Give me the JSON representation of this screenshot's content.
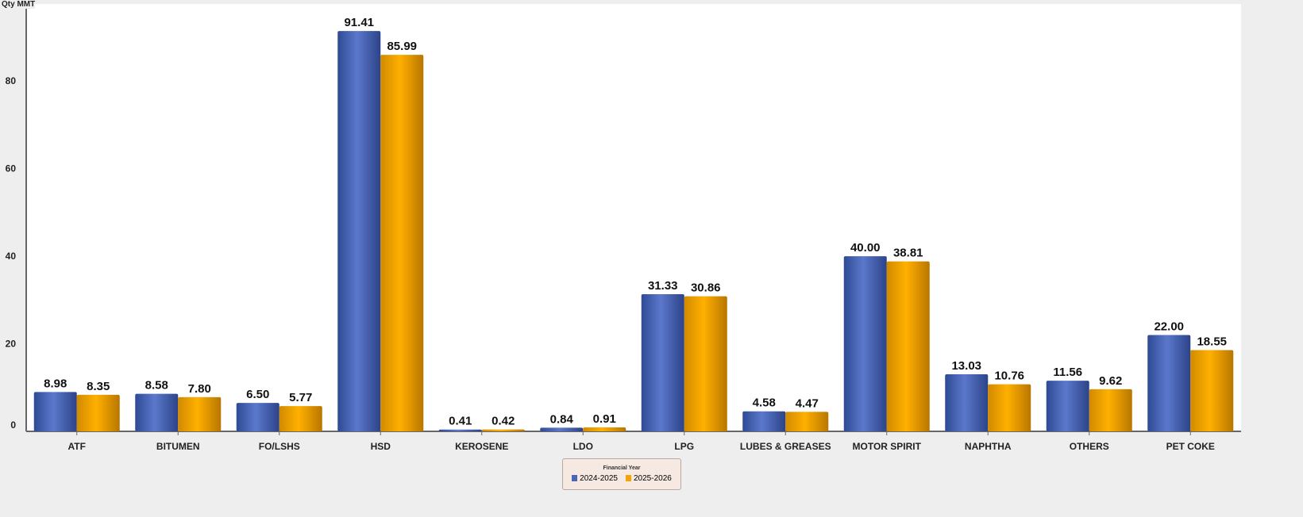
{
  "chart_data": {
    "type": "bar",
    "ylabel": "Qty MMT",
    "ylim": [
      0,
      97.6
    ],
    "yticks": [
      0,
      20,
      40,
      60,
      80
    ],
    "categories": [
      "ATF",
      "BITUMEN",
      "FO/LSHS",
      "HSD",
      "KEROSENE",
      "LDO",
      "LPG",
      "LUBES & GREASES",
      "MOTOR SPIRIT",
      "NAPHTHA",
      "OTHERS",
      "PET COKE"
    ],
    "legend_title": "Financial Year",
    "legend_placement": "bottom",
    "grid": false,
    "series": [
      {
        "name": "2024-2025",
        "color": "#4a66b8",
        "values": [
          8.98,
          8.58,
          6.5,
          91.41,
          0.41,
          0.84,
          31.33,
          4.58,
          40.0,
          13.03,
          11.56,
          22.0
        ]
      },
      {
        "name": "2025-2026",
        "color": "#f2a500",
        "values": [
          8.35,
          7.8,
          5.77,
          85.99,
          0.42,
          0.91,
          30.86,
          4.47,
          38.81,
          10.76,
          9.62,
          18.55
        ]
      }
    ]
  }
}
